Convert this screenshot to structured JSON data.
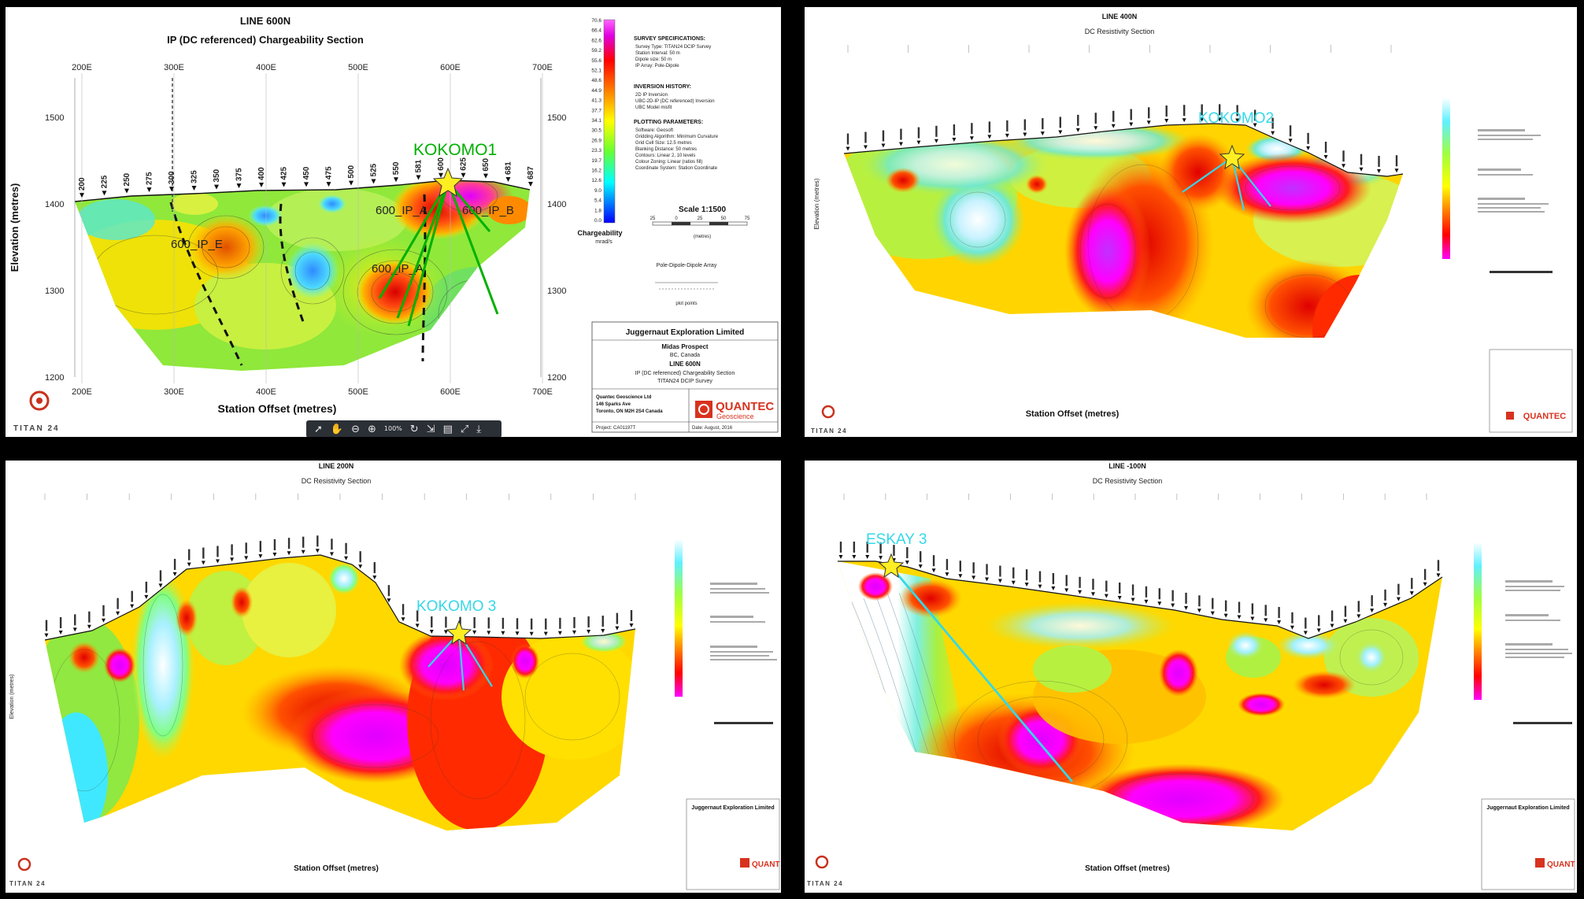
{
  "panels": [
    {
      "title": "LINE 600N",
      "subtitle": "IP (DC referenced) Chargeability Section",
      "x_tick_labels": [
        "200E",
        "300E",
        "400E",
        "500E",
        "600E",
        "700E"
      ],
      "y_tick_labels": [
        "1500",
        "1400",
        "1300",
        "1200"
      ],
      "y_axis_label": "Elevation (metres)",
      "x_axis_label": "Station Offset (metres)",
      "stations": [
        "200",
        "225",
        "250",
        "275",
        "300",
        "325",
        "350",
        "375",
        "400",
        "425",
        "450",
        "475",
        "500",
        "525",
        "550",
        "581",
        "600",
        "625",
        "650",
        "681",
        "687"
      ],
      "target_label": "KOKOMO1",
      "zone_labels": [
        "600_IP_E",
        "600_IP_A",
        "600_IP_A",
        "600_IP_B"
      ],
      "legend_values": [
        "70.6",
        "66.4",
        "62.6",
        "59.2",
        "55.6",
        "52.1",
        "48.6",
        "44.9",
        "41.3",
        "37.7",
        "34.1",
        "30.5",
        "26.9",
        "23.3",
        "19.7",
        "16.2",
        "12.6",
        "9.0",
        "5.4",
        "1.8",
        "0.0"
      ],
      "legend_title": "Chargeability",
      "legend_unit": "mrad/s",
      "spec_heading": "SURVEY SPECIFICATIONS:",
      "spec_lines": [
        "Survey Type: TITAN24 DCIP Survey",
        "Station Interval: 50 m",
        "Dipole size: 50 m",
        "IP Array: Pole-Dipole"
      ],
      "inversion_heading": "INVERSION HISTORY:",
      "inversion_lines": [
        "2D IP Inversion",
        "UBC-2D-IP (DC referenced) Inversion",
        "UBC Model misfit"
      ],
      "plotting_heading": "PLOTTING PARAMETERS:",
      "plotting_lines": [
        "Software: Geosoft",
        "Gridding Algorithm: Minimum Curvature",
        "Grid Cell Size: 12.5 metres",
        "Blanking Distance: 50 metres",
        "Contours: Linear 2, 10 levels",
        "Colour Zoning: Linear (ratios fill)",
        "Coordinate System: Station Coordinate"
      ],
      "scale_label": "Scale 1:1500",
      "scale_ticks": [
        "25",
        "0",
        "25",
        "50",
        "75"
      ],
      "scale_unit": "(metres)",
      "array_label": "Pole-Dipole-Dipole Array",
      "array_caption": "plot points",
      "company": "Juggernaut Exploration Limited",
      "project": "Midas Prospect",
      "region": "BC, Canada",
      "line_name": "LINE 600N",
      "section_name": "IP (DC referenced) Chargeability Section",
      "survey_name": "TITAN24 DCIP Survey",
      "contractor_lines": [
        "Quantec Geoscience Ltd",
        "146 Sparks Ave",
        "Toronto, ON M2H 2S4 Canada"
      ],
      "project_no": "Project: CA01197T",
      "date_text": "Date: August, 2016",
      "quantec_brand": "QUANTEC",
      "quantec_sub": "Geoscience",
      "titan_logo": "TITAN 24"
    },
    {
      "title": "LINE 400N",
      "subtitle": "DC Resistivity Section",
      "target_label": "KOKOMO2",
      "x_axis_label": "Station Offset (metres)",
      "y_axis_label": "Elevation (metres)",
      "titan_logo": "TITAN 24",
      "quantec_brand": "QUANTEC"
    },
    {
      "title": "LINE 200N",
      "subtitle": "DC Resistivity Section",
      "target_label": "KOKOMO 3",
      "x_axis_label": "Station Offset (metres)",
      "y_axis_label": "Elevation (metres)",
      "titan_logo": "TITAN 24",
      "quantec_brand": "QUANT",
      "company": "Juggernaut Exploration Limited"
    },
    {
      "title": "LINE -100N",
      "subtitle": "DC Resistivity Section",
      "target_label": "ESKAY 3",
      "x_axis_label": "Station Offset (metres)",
      "titan_logo": "TITAN 24",
      "quantec_brand": "QUANT",
      "company": "Juggernaut Exploration Limited"
    }
  ],
  "viewer_toolbar": {
    "icons": [
      "cursor-icon",
      "hand-icon",
      "zoom-out-icon",
      "zoom-in-icon",
      "zoom-percent",
      "rotate-icon",
      "fit-icon",
      "page-icon",
      "fullscreen-icon",
      "download-icon"
    ],
    "zoom_text": "100%"
  },
  "colors": {
    "frame": "#000000",
    "target_green": "#00b000",
    "target_cyan": "#35d8e8",
    "star": "#ffee22"
  }
}
